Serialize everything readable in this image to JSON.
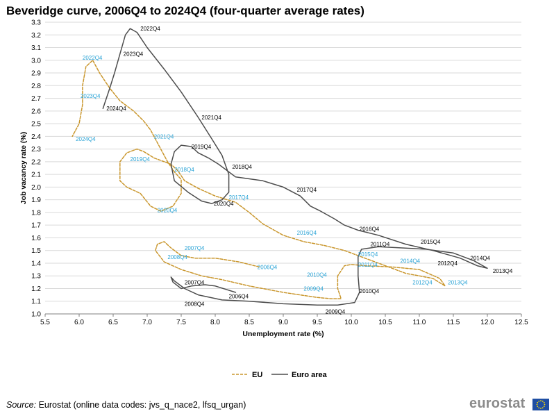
{
  "title": "Beveridge curve, 2006Q4 to 2024Q4 (four-quarter average rates)",
  "footer": {
    "source_label": "Source:",
    "source_text": " Eurostat (online data codes: jvs_q_nace2, lfsq_urgan)",
    "logo_text": "eurostat",
    "logo_flag_icon": "eu-flag-icon"
  },
  "colors": {
    "eu": "#c9962c",
    "euro_area": "#4d4d4d",
    "eu_label": "#29a3d6",
    "grid": "#d9d9d9",
    "axis": "#7f7f7f"
  },
  "chart_data": {
    "type": "line",
    "title": "Beveridge curve, 2006Q4 to 2024Q4 (four-quarter average rates)",
    "xlabel": "Unemployment rate (%)",
    "ylabel": "Job vacancy rate (%)",
    "xlim": [
      5.5,
      12.5
    ],
    "ylim": [
      1.0,
      3.3
    ],
    "x_ticks": [
      "5.5",
      "6.0",
      "6.5",
      "7.0",
      "7.5",
      "8.0",
      "8.5",
      "9.0",
      "9.5",
      "10.0",
      "10.5",
      "11.0",
      "11.5",
      "12.0",
      "12.5"
    ],
    "y_ticks": [
      "1.0",
      "1.1",
      "1.2",
      "1.3",
      "1.4",
      "1.5",
      "1.6",
      "1.7",
      "1.8",
      "1.9",
      "2.0",
      "2.1",
      "2.2",
      "2.3",
      "2.4",
      "2.5",
      "2.6",
      "2.7",
      "2.8",
      "2.9",
      "3.0",
      "3.1",
      "3.2",
      "3.3"
    ],
    "grid": "horizontal",
    "legend_position": "bottom",
    "series": [
      {
        "name": "EU",
        "style": "dashed",
        "points": [
          [
            8.65,
            1.37
          ],
          [
            8.35,
            1.41
          ],
          [
            8.0,
            1.44
          ],
          [
            7.7,
            1.44
          ],
          [
            7.5,
            1.46
          ],
          [
            7.35,
            1.52
          ],
          [
            7.25,
            1.57
          ],
          [
            7.15,
            1.55
          ],
          [
            7.12,
            1.5
          ],
          [
            7.25,
            1.41
          ],
          [
            7.5,
            1.35
          ],
          [
            7.8,
            1.3
          ],
          [
            8.1,
            1.27
          ],
          [
            8.5,
            1.22
          ],
          [
            9.0,
            1.17
          ],
          [
            9.5,
            1.13
          ],
          [
            9.7,
            1.12
          ],
          [
            9.85,
            1.12
          ],
          [
            9.8,
            1.2
          ],
          [
            9.8,
            1.3
          ],
          [
            9.9,
            1.38
          ],
          [
            10.0,
            1.39
          ],
          [
            10.2,
            1.38
          ],
          [
            10.6,
            1.37
          ],
          [
            11.0,
            1.35
          ],
          [
            11.3,
            1.28
          ],
          [
            11.38,
            1.22
          ],
          [
            11.2,
            1.28
          ],
          [
            10.8,
            1.32
          ],
          [
            10.5,
            1.38
          ],
          [
            10.2,
            1.44
          ],
          [
            9.9,
            1.5
          ],
          [
            9.6,
            1.54
          ],
          [
            9.3,
            1.57
          ],
          [
            9.0,
            1.62
          ],
          [
            8.7,
            1.71
          ],
          [
            8.5,
            1.8
          ],
          [
            8.3,
            1.88
          ],
          [
            8.0,
            1.93
          ],
          [
            7.75,
            1.99
          ],
          [
            7.55,
            2.05
          ],
          [
            7.45,
            2.13
          ],
          [
            7.35,
            2.18
          ],
          [
            7.1,
            2.23
          ],
          [
            6.95,
            2.28
          ],
          [
            6.85,
            2.3
          ],
          [
            6.7,
            2.27
          ],
          [
            6.6,
            2.2
          ],
          [
            6.6,
            2.05
          ],
          [
            6.7,
            2.0
          ],
          [
            6.9,
            1.95
          ],
          [
            7.05,
            1.85
          ],
          [
            7.2,
            1.81
          ],
          [
            7.38,
            1.85
          ],
          [
            7.5,
            1.95
          ],
          [
            7.5,
            2.06
          ],
          [
            7.4,
            2.12
          ],
          [
            7.3,
            2.2
          ],
          [
            7.15,
            2.35
          ],
          [
            7.05,
            2.45
          ],
          [
            6.95,
            2.52
          ],
          [
            6.8,
            2.6
          ],
          [
            6.6,
            2.68
          ],
          [
            6.45,
            2.78
          ],
          [
            6.3,
            2.9
          ],
          [
            6.2,
            3.0
          ],
          [
            6.1,
            2.95
          ],
          [
            6.05,
            2.8
          ],
          [
            6.05,
            2.65
          ],
          [
            6.0,
            2.5
          ],
          [
            5.9,
            2.4
          ]
        ],
        "labels": [
          {
            "text": "2006Q4",
            "x": 8.62,
            "y": 1.37
          },
          {
            "text": "2007Q4",
            "x": 7.55,
            "y": 1.52
          },
          {
            "text": "2008Q4",
            "x": 7.3,
            "y": 1.45
          },
          {
            "text": "2009Q4",
            "x": 9.3,
            "y": 1.2
          },
          {
            "text": "2010Q4",
            "x": 9.35,
            "y": 1.31
          },
          {
            "text": "2011Q4",
            "x": 10.1,
            "y": 1.39
          },
          {
            "text": "2012Q4",
            "x": 10.9,
            "y": 1.25
          },
          {
            "text": "2013Q4",
            "x": 11.42,
            "y": 1.25
          },
          {
            "text": "2014Q4",
            "x": 10.72,
            "y": 1.42
          },
          {
            "text": "2015Q4",
            "x": 10.1,
            "y": 1.47
          },
          {
            "text": "2016Q4",
            "x": 9.2,
            "y": 1.64
          },
          {
            "text": "2017Q4",
            "x": 8.2,
            "y": 1.92
          },
          {
            "text": "2018Q4",
            "x": 7.4,
            "y": 2.14
          },
          {
            "text": "2019Q4",
            "x": 6.75,
            "y": 2.22
          },
          {
            "text": "2020Q4",
            "x": 7.15,
            "y": 1.82
          },
          {
            "text": "2021Q4",
            "x": 7.1,
            "y": 2.4
          },
          {
            "text": "2022Q4",
            "x": 6.05,
            "y": 3.02
          },
          {
            "text": "2023Q4",
            "x": 6.02,
            "y": 2.72
          },
          {
            "text": "2024Q4",
            "x": 5.95,
            "y": 2.38
          }
        ]
      },
      {
        "name": "Euro area",
        "style": "solid",
        "points": [
          [
            8.3,
            1.17
          ],
          [
            8.0,
            1.22
          ],
          [
            7.85,
            1.23
          ],
          [
            7.65,
            1.22
          ],
          [
            7.5,
            1.2
          ],
          [
            7.38,
            1.25
          ],
          [
            7.35,
            1.29
          ],
          [
            7.4,
            1.26
          ],
          [
            7.55,
            1.2
          ],
          [
            7.75,
            1.15
          ],
          [
            8.1,
            1.11
          ],
          [
            8.5,
            1.1
          ],
          [
            9.0,
            1.08
          ],
          [
            9.5,
            1.07
          ],
          [
            9.8,
            1.07
          ],
          [
            10.05,
            1.09
          ],
          [
            10.12,
            1.17
          ],
          [
            10.1,
            1.3
          ],
          [
            10.1,
            1.45
          ],
          [
            10.15,
            1.51
          ],
          [
            10.4,
            1.53
          ],
          [
            10.75,
            1.52
          ],
          [
            11.1,
            1.51
          ],
          [
            11.5,
            1.48
          ],
          [
            11.8,
            1.42
          ],
          [
            12.0,
            1.36
          ],
          [
            11.85,
            1.38
          ],
          [
            11.6,
            1.44
          ],
          [
            11.2,
            1.5
          ],
          [
            10.8,
            1.55
          ],
          [
            10.4,
            1.62
          ],
          [
            10.1,
            1.66
          ],
          [
            9.9,
            1.7
          ],
          [
            9.75,
            1.75
          ],
          [
            9.55,
            1.81
          ],
          [
            9.4,
            1.85
          ],
          [
            9.25,
            1.93
          ],
          [
            9.0,
            2.0
          ],
          [
            8.7,
            2.05
          ],
          [
            8.3,
            2.08
          ],
          [
            8.05,
            2.18
          ],
          [
            7.9,
            2.23
          ],
          [
            7.75,
            2.27
          ],
          [
            7.65,
            2.32
          ],
          [
            7.5,
            2.33
          ],
          [
            7.4,
            2.28
          ],
          [
            7.35,
            2.18
          ],
          [
            7.4,
            2.05
          ],
          [
            7.6,
            1.96
          ],
          [
            7.8,
            1.89
          ],
          [
            7.95,
            1.87
          ],
          [
            8.1,
            1.9
          ],
          [
            8.2,
            1.96
          ],
          [
            8.2,
            2.1
          ],
          [
            8.1,
            2.25
          ],
          [
            7.95,
            2.38
          ],
          [
            7.75,
            2.55
          ],
          [
            7.5,
            2.75
          ],
          [
            7.25,
            2.93
          ],
          [
            7.0,
            3.1
          ],
          [
            6.85,
            3.22
          ],
          [
            6.75,
            3.25
          ],
          [
            6.68,
            3.2
          ],
          [
            6.6,
            3.05
          ],
          [
            6.52,
            2.9
          ],
          [
            6.45,
            2.78
          ],
          [
            6.35,
            2.62
          ]
        ],
        "labels": [
          {
            "text": "2006Q4",
            "x": 8.2,
            "y": 1.14
          },
          {
            "text": "2007Q4",
            "x": 7.55,
            "y": 1.25
          },
          {
            "text": "2008Q4",
            "x": 7.55,
            "y": 1.08
          },
          {
            "text": "2009Q4",
            "x": 9.62,
            "y": 1.02
          },
          {
            "text": "2010Q4",
            "x": 10.12,
            "y": 1.18
          },
          {
            "text": "2011Q4",
            "x": 10.28,
            "y": 1.55
          },
          {
            "text": "2012Q4",
            "x": 11.27,
            "y": 1.4
          },
          {
            "text": "2013Q4",
            "x": 12.08,
            "y": 1.34
          },
          {
            "text": "2014Q4",
            "x": 11.75,
            "y": 1.44
          },
          {
            "text": "2015Q4",
            "x": 11.02,
            "y": 1.57
          },
          {
            "text": "2016Q4",
            "x": 10.12,
            "y": 1.67
          },
          {
            "text": "2017Q4",
            "x": 9.2,
            "y": 1.98
          },
          {
            "text": "2018Q4",
            "x": 8.25,
            "y": 2.16
          },
          {
            "text": "2019Q4",
            "x": 7.65,
            "y": 2.32
          },
          {
            "text": "2020Q4",
            "x": 7.98,
            "y": 1.87
          },
          {
            "text": "2021Q4",
            "x": 7.8,
            "y": 2.55
          },
          {
            "text": "2022Q4",
            "x": 6.9,
            "y": 3.25
          },
          {
            "text": "2023Q4",
            "x": 6.65,
            "y": 3.05
          },
          {
            "text": "2024Q4",
            "x": 6.4,
            "y": 2.62
          }
        ]
      }
    ]
  }
}
